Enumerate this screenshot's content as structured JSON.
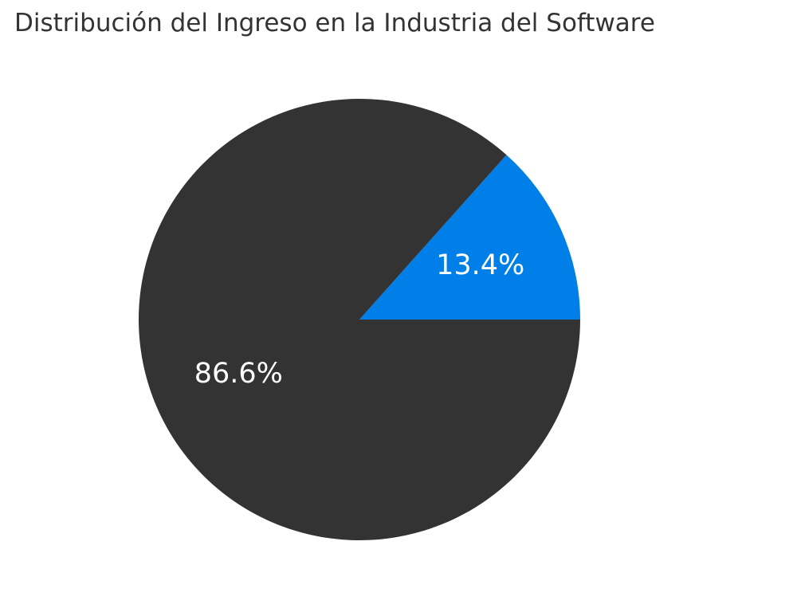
{
  "chart_data": {
    "type": "pie",
    "title": "Distribución del Ingreso en la Industria del Software",
    "slices": [
      {
        "value": 13.4,
        "label": "13.4%",
        "color": "#007FE9"
      },
      {
        "value": 86.6,
        "label": "86.6%",
        "color": "#333333"
      }
    ],
    "start_angle_deg": 0,
    "direction": "counterclockwise",
    "legend": "none"
  }
}
